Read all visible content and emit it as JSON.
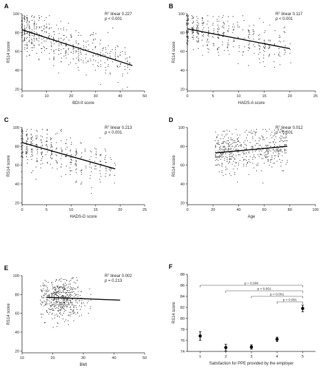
{
  "figure": {
    "panels": [
      "A",
      "B",
      "C",
      "D",
      "E",
      "F"
    ]
  },
  "chart_data": [
    {
      "panel": "A",
      "type": "scatter",
      "xlabel": "BDI-II score",
      "ylabel": "RS14 score",
      "xlim": [
        0,
        50
      ],
      "ylim": [
        18,
        100
      ],
      "xticks": [
        "0",
        "10",
        "20",
        "30",
        "40",
        "50"
      ],
      "yticks": [
        "20",
        "40",
        "60",
        "80",
        "100"
      ],
      "xtick_values": [
        0,
        10,
        20,
        30,
        40,
        50
      ],
      "ytick_values": [
        20,
        40,
        60,
        80,
        100
      ],
      "r2_label": "R",
      "r2_sup": "2",
      "r2_text": " linear 0.227",
      "p_symbol": "p",
      "p_text": " < 0.001",
      "regression_line": {
        "x": [
          0,
          45
        ],
        "y": [
          83,
          45
        ]
      },
      "scatter_description": "dense column-aligned points, integer x values",
      "points_sample": {
        "x_range": [
          0,
          45
        ],
        "y_range": [
          18,
          98
        ],
        "count_est": 900,
        "x_step": 1,
        "center_y_at_x0": 83,
        "center_y_at_xmax": 45
      }
    },
    {
      "panel": "B",
      "type": "scatter",
      "xlabel": "HADS-A score",
      "ylabel": "RS14 score",
      "xlim": [
        0,
        25
      ],
      "ylim": [
        18,
        100
      ],
      "xticks": [
        "0",
        "5",
        "10",
        "15",
        "20",
        "25"
      ],
      "yticks": [
        "20",
        "40",
        "60",
        "80",
        "100"
      ],
      "xtick_values": [
        0,
        5,
        10,
        15,
        20,
        25
      ],
      "ytick_values": [
        20,
        40,
        60,
        80,
        100
      ],
      "r2_label": "R",
      "r2_sup": "2",
      "r2_text": " linear 0.117",
      "p_symbol": "p",
      "p_text": " < 0.001",
      "regression_line": {
        "x": [
          0,
          20
        ],
        "y": [
          84,
          63
        ]
      },
      "points_sample": {
        "x_range": [
          0,
          20
        ],
        "y_range": [
          18,
          98
        ],
        "count_est": 700,
        "x_step": 1,
        "center_y_at_x0": 84,
        "center_y_at_xmax": 63
      }
    },
    {
      "panel": "C",
      "type": "scatter",
      "xlabel": "HADS-D score",
      "ylabel": "RS14 score",
      "xlim": [
        0,
        25
      ],
      "ylim": [
        18,
        100
      ],
      "xticks": [
        "0",
        "5",
        "10",
        "15",
        "20",
        "25"
      ],
      "yticks": [
        "20",
        "40",
        "60",
        "80",
        "100"
      ],
      "xtick_values": [
        0,
        5,
        10,
        15,
        20,
        25
      ],
      "ytick_values": [
        20,
        40,
        60,
        80,
        100
      ],
      "r2_label": "R",
      "r2_sup": "2",
      "r2_text": " linear 0.213",
      "p_symbol": "p",
      "p_text": " < 0.001",
      "regression_line": {
        "x": [
          0,
          19
        ],
        "y": [
          84,
          56
        ]
      },
      "points_sample": {
        "x_range": [
          0,
          19
        ],
        "y_range": [
          18,
          98
        ],
        "count_est": 700,
        "x_step": 1,
        "center_y_at_x0": 84,
        "center_y_at_xmax": 56
      }
    },
    {
      "panel": "D",
      "type": "scatter",
      "xlabel": "Age",
      "ylabel": "RS14 score",
      "xlim": [
        0,
        100
      ],
      "ylim": [
        18,
        100
      ],
      "xticks": [
        "0",
        "20",
        "40",
        "60",
        "80",
        "100"
      ],
      "yticks": [
        "20",
        "40",
        "60",
        "80",
        "100"
      ],
      "xtick_values": [
        0,
        20,
        40,
        60,
        80,
        100
      ],
      "ytick_values": [
        20,
        40,
        60,
        80,
        100
      ],
      "r2_label": "R",
      "r2_sup": "2",
      "r2_text": " linear 0.012",
      "p_symbol": "p",
      "p_text": " < 0.001",
      "regression_line": {
        "x": [
          22,
          78
        ],
        "y": [
          73,
          80
        ]
      },
      "points_sample": {
        "x_range": [
          22,
          78
        ],
        "y_range": [
          18,
          98
        ],
        "count_est": 900,
        "x_step": 1,
        "center_y_at_x0": 73,
        "center_y_at_xmax": 80
      }
    },
    {
      "panel": "E",
      "type": "scatter",
      "xlabel": "BMI",
      "ylabel": "RS14 score",
      "xlim": [
        10,
        50
      ],
      "ylim": [
        18,
        100
      ],
      "xticks": [
        "10",
        "20",
        "30",
        "40",
        "50"
      ],
      "yticks": [
        "20",
        "40",
        "60",
        "80",
        "100"
      ],
      "xtick_values": [
        10,
        20,
        30,
        40,
        50
      ],
      "ytick_values": [
        20,
        40,
        60,
        80,
        100
      ],
      "r2_label": "R",
      "r2_sup": "2",
      "r2_text": " linear 0.002",
      "p_symbol": "p",
      "p_text": " = 0.213",
      "regression_line": {
        "x": [
          18,
          42
        ],
        "y": [
          77,
          74
        ]
      },
      "points_sample": {
        "x_range": [
          16,
          42
        ],
        "y_range": [
          18,
          98
        ],
        "count_est": 900,
        "x_step": 0,
        "center_y_at_x0": 76,
        "center_y_at_xmax": 74
      }
    },
    {
      "panel": "F",
      "type": "scatter",
      "xlabel": "Satisfaction for PPE provided by the employer",
      "ylabel": "RS14 score",
      "xlim": [
        0.5,
        5.5
      ],
      "ylim": [
        74,
        88
      ],
      "xticks": [
        "1",
        "2",
        "3",
        "4",
        "5"
      ],
      "yticks": [
        "74",
        "76",
        "78",
        "80",
        "82",
        "84",
        "86",
        "88"
      ],
      "xtick_values": [
        1,
        2,
        3,
        4,
        5
      ],
      "ytick_values": [
        74,
        76,
        78,
        80,
        82,
        84,
        86,
        88
      ],
      "points": [
        {
          "x": 1,
          "y": 76.8,
          "err_low": 76.0,
          "err_high": 77.6
        },
        {
          "x": 2,
          "y": 74.7,
          "err_low": 74.1,
          "err_high": 75.3
        },
        {
          "x": 3,
          "y": 74.8,
          "err_low": 74.4,
          "err_high": 75.2
        },
        {
          "x": 4,
          "y": 76.2,
          "err_low": 75.8,
          "err_high": 76.6
        },
        {
          "x": 5,
          "y": 81.8,
          "err_low": 81.2,
          "err_high": 82.4
        }
      ],
      "comparisons": [
        {
          "from": 1,
          "to": 5,
          "y": 86.0,
          "label": "p = 0.006"
        },
        {
          "from": 2,
          "to": 5,
          "y": 85.0,
          "label": "p < 0.001"
        },
        {
          "from": 3,
          "to": 5,
          "y": 84.0,
          "label": "p < 0.001"
        },
        {
          "from": 4,
          "to": 5,
          "y": 83.0,
          "label": "p < 0.001"
        }
      ]
    }
  ]
}
